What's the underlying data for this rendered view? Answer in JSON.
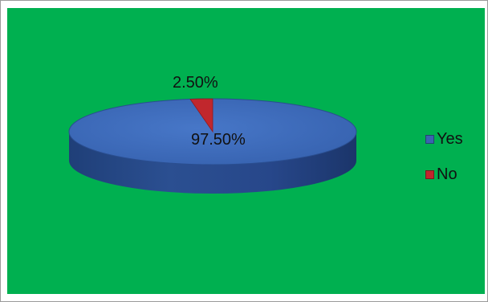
{
  "chart_data": {
    "type": "pie",
    "categories": [
      "Yes",
      "No"
    ],
    "values": [
      97.5,
      2.5
    ],
    "data_labels": [
      "97.50%",
      "2.50%"
    ],
    "colors": {
      "Yes": "#3a64b0",
      "No": "#c1272d"
    },
    "legend_position": "right",
    "style": "3d"
  },
  "legend": {
    "items": [
      {
        "label": "Yes",
        "color": "#3a64b0"
      },
      {
        "label": "No",
        "color": "#c1272d"
      }
    ]
  },
  "background": "#00b050"
}
